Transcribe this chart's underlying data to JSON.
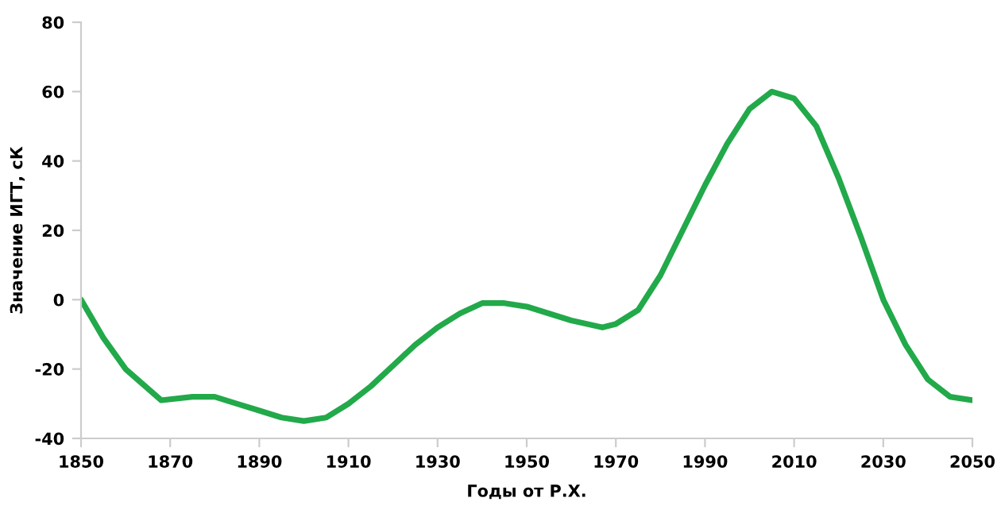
{
  "chart_data": {
    "type": "line",
    "xlabel": "Годы от Р.Х.",
    "ylabel": "Значение ИГТ, сК",
    "x": [
      1850,
      1855,
      1860,
      1868,
      1875,
      1880,
      1885,
      1890,
      1895,
      1900,
      1905,
      1910,
      1915,
      1920,
      1925,
      1930,
      1935,
      1940,
      1945,
      1950,
      1955,
      1960,
      1967,
      1970,
      1975,
      1980,
      1985,
      1990,
      1995,
      2000,
      2005,
      2010,
      2015,
      2020,
      2025,
      2030,
      2035,
      2040,
      2045,
      2050
    ],
    "series": [
      {
        "color": "#22a94a",
        "values": [
          0,
          -11,
          -20,
          -29,
          -28,
          -28,
          -30,
          -32,
          -34,
          -35,
          -34,
          -30,
          -25,
          -19,
          -13,
          -8,
          -4,
          -1,
          -1,
          -2,
          -4,
          -6,
          -8,
          -7,
          -3,
          7,
          20,
          33,
          45,
          55,
          60,
          58,
          50,
          35,
          18,
          0,
          -13,
          -23,
          -28,
          -29
        ]
      }
    ],
    "xlim": [
      1850,
      2050
    ],
    "xticks": [
      1850,
      1870,
      1890,
      1910,
      1930,
      1950,
      1970,
      1990,
      2010,
      2030,
      2050
    ],
    "ylim": [
      -40,
      80
    ],
    "yticks": [
      -40,
      -20,
      0,
      20,
      40,
      60,
      80
    ],
    "grid": false,
    "legend": false,
    "marker": "none",
    "line_style": "solid"
  }
}
